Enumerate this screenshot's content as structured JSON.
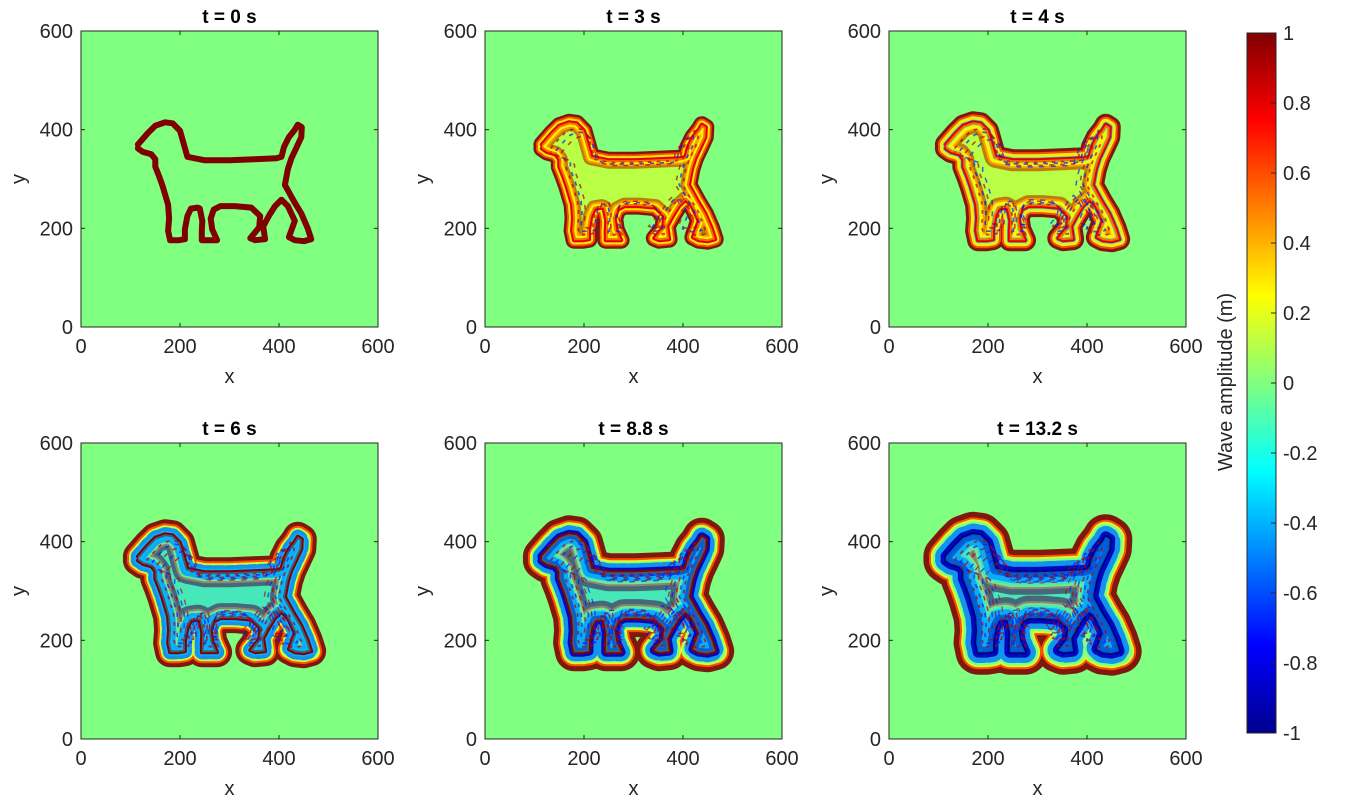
{
  "chart_data": {
    "type": "heatmap",
    "panels": [
      {
        "title": "t = 0 s",
        "pattern": 0
      },
      {
        "title": "t = 3 s",
        "pattern": 1
      },
      {
        "title": "t = 4 s",
        "pattern": 2
      },
      {
        "title": "t = 6 s",
        "pattern": 3
      },
      {
        "title": "t = 8.8 s",
        "pattern": 4
      },
      {
        "title": "t = 13.2 s",
        "pattern": 5
      }
    ],
    "xlabel": "x",
    "ylabel": "y",
    "xlim": [
      0,
      600
    ],
    "ylim": [
      0,
      600
    ],
    "xticks": [
      "0",
      "200",
      "400",
      "600"
    ],
    "yticks": [
      "0",
      "200",
      "400",
      "600"
    ],
    "background_value": 0,
    "colormap": "jet",
    "colorbar": {
      "label": "Wave amplitude (m)",
      "clim": [
        -1,
        1
      ],
      "ticks": [
        "1",
        "0.8",
        "0.6",
        "0.4",
        "0.2",
        "0",
        "-0.2",
        "-0.4",
        "-0.6",
        "-0.8",
        "-1"
      ]
    },
    "dog_outline": [
      [
        115,
        370
      ],
      [
        135,
        393
      ],
      [
        150,
        408
      ],
      [
        170,
        415
      ],
      [
        185,
        413
      ],
      [
        200,
        398
      ],
      [
        215,
        345
      ],
      [
        250,
        338
      ],
      [
        300,
        338
      ],
      [
        350,
        340
      ],
      [
        395,
        342
      ],
      [
        405,
        345
      ],
      [
        410,
        365
      ],
      [
        420,
        385
      ],
      [
        432,
        400
      ],
      [
        438,
        410
      ],
      [
        446,
        405
      ],
      [
        445,
        385
      ],
      [
        436,
        365
      ],
      [
        425,
        342
      ],
      [
        418,
        320
      ],
      [
        412,
        288
      ],
      [
        430,
        255
      ],
      [
        445,
        230
      ],
      [
        458,
        200
      ],
      [
        465,
        178
      ],
      [
        450,
        174
      ],
      [
        432,
        176
      ],
      [
        420,
        182
      ],
      [
        432,
        215
      ],
      [
        418,
        245
      ],
      [
        405,
        258
      ],
      [
        392,
        245
      ],
      [
        380,
        226
      ],
      [
        368,
        204
      ],
      [
        372,
        178
      ],
      [
        352,
        176
      ],
      [
        342,
        180
      ],
      [
        360,
        202
      ],
      [
        362,
        225
      ],
      [
        344,
        242
      ],
      [
        310,
        245
      ],
      [
        282,
        245
      ],
      [
        268,
        238
      ],
      [
        262,
        220
      ],
      [
        265,
        198
      ],
      [
        275,
        176
      ],
      [
        262,
        176
      ],
      [
        244,
        176
      ],
      [
        244,
        195
      ],
      [
        245,
        215
      ],
      [
        240,
        240
      ],
      [
        236,
        242
      ],
      [
        222,
        240
      ],
      [
        215,
        225
      ],
      [
        210,
        198
      ],
      [
        210,
        178
      ],
      [
        198,
        176
      ],
      [
        180,
        176
      ],
      [
        176,
        195
      ],
      [
        178,
        220
      ],
      [
        176,
        248
      ],
      [
        165,
        285
      ],
      [
        158,
        305
      ],
      [
        150,
        325
      ],
      [
        150,
        340
      ],
      [
        142,
        350
      ],
      [
        125,
        355
      ],
      [
        115,
        362
      ]
    ]
  }
}
